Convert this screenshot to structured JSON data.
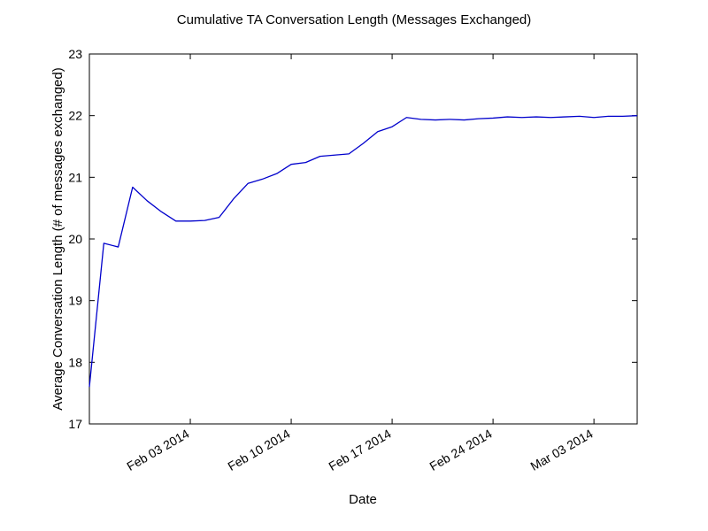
{
  "chart_data": {
    "type": "line",
    "title": "Cumulative TA Conversation Length (Messages Exchanged)",
    "xlabel": "Date",
    "ylabel": "Average Conversation Length (# of messages exchanged)",
    "ylim": [
      17,
      23
    ],
    "xlim": [
      "2014-01-27",
      "2014-03-06"
    ],
    "y_ticks": [
      17,
      18,
      19,
      20,
      21,
      22,
      23
    ],
    "x_ticks": [
      {
        "date": "2014-02-03",
        "label": "Feb 03 2014"
      },
      {
        "date": "2014-02-10",
        "label": "Feb 10 2014"
      },
      {
        "date": "2014-02-17",
        "label": "Feb 17 2014"
      },
      {
        "date": "2014-02-24",
        "label": "Feb 24 2014"
      },
      {
        "date": "2014-03-03",
        "label": "Mar 03 2014"
      }
    ],
    "grid": false,
    "series": [
      {
        "color": "#0000cc",
        "points": [
          {
            "x": "2014-01-27",
            "y": 17.6
          },
          {
            "x": "2014-01-28",
            "y": 19.93
          },
          {
            "x": "2014-01-29",
            "y": 19.87
          },
          {
            "x": "2014-01-30",
            "y": 20.84
          },
          {
            "x": "2014-01-31",
            "y": 20.62
          },
          {
            "x": "2014-02-01",
            "y": 20.44
          },
          {
            "x": "2014-02-02",
            "y": 20.29
          },
          {
            "x": "2014-02-03",
            "y": 20.29
          },
          {
            "x": "2014-02-04",
            "y": 20.3
          },
          {
            "x": "2014-02-05",
            "y": 20.35
          },
          {
            "x": "2014-02-06",
            "y": 20.65
          },
          {
            "x": "2014-02-07",
            "y": 20.9
          },
          {
            "x": "2014-02-08",
            "y": 20.97
          },
          {
            "x": "2014-02-09",
            "y": 21.06
          },
          {
            "x": "2014-02-10",
            "y": 21.21
          },
          {
            "x": "2014-02-11",
            "y": 21.24
          },
          {
            "x": "2014-02-12",
            "y": 21.34
          },
          {
            "x": "2014-02-13",
            "y": 21.36
          },
          {
            "x": "2014-02-14",
            "y": 21.38
          },
          {
            "x": "2014-02-15",
            "y": 21.55
          },
          {
            "x": "2014-02-16",
            "y": 21.74
          },
          {
            "x": "2014-02-17",
            "y": 21.82
          },
          {
            "x": "2014-02-18",
            "y": 21.97
          },
          {
            "x": "2014-02-19",
            "y": 21.94
          },
          {
            "x": "2014-02-20",
            "y": 21.93
          },
          {
            "x": "2014-02-21",
            "y": 21.94
          },
          {
            "x": "2014-02-22",
            "y": 21.93
          },
          {
            "x": "2014-02-23",
            "y": 21.95
          },
          {
            "x": "2014-02-24",
            "y": 21.96
          },
          {
            "x": "2014-02-25",
            "y": 21.98
          },
          {
            "x": "2014-02-26",
            "y": 21.97
          },
          {
            "x": "2014-02-27",
            "y": 21.98
          },
          {
            "x": "2014-02-28",
            "y": 21.97
          },
          {
            "x": "2014-03-01",
            "y": 21.98
          },
          {
            "x": "2014-03-02",
            "y": 21.99
          },
          {
            "x": "2014-03-03",
            "y": 21.97
          },
          {
            "x": "2014-03-04",
            "y": 21.99
          },
          {
            "x": "2014-03-05",
            "y": 21.99
          },
          {
            "x": "2014-03-06",
            "y": 22.0
          }
        ]
      }
    ]
  }
}
